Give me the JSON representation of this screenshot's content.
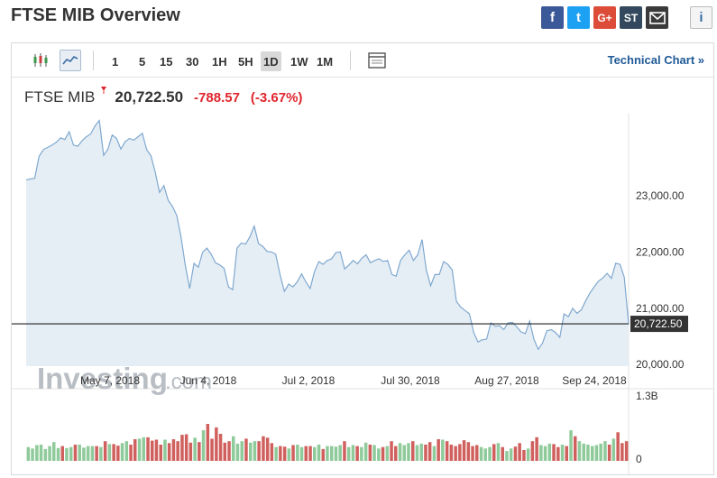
{
  "page": {
    "title": "FTSE MIB Overview"
  },
  "share": {
    "facebook": "f",
    "twitter": "t",
    "google": "G+",
    "stocktwits": "ST",
    "info": "i"
  },
  "toolbar": {
    "intervals": [
      "1",
      "5",
      "15",
      "30",
      "1H",
      "5H",
      "1D",
      "1W",
      "1M"
    ],
    "selected_interval": "1D",
    "technical_chart_label": "Technical Chart »"
  },
  "quote": {
    "name": "FTSE MIB",
    "last": "20,722.50",
    "change": "-788.57",
    "change_pct": "(-3.67%)"
  },
  "colors": {
    "accent": "#1f5a96",
    "negative": "#e0262c",
    "line": "#7fa8cf",
    "area": "#e6eef5",
    "vol_up": "#8fca9a",
    "vol_down": "#d0605e"
  },
  "watermark": {
    "brand": "Investing",
    "suffix": ".com"
  },
  "chart_data": {
    "type": "area",
    "x_ticks": [
      "May 7, 2018",
      "Jun 4, 2018",
      "Jul 2, 2018",
      "Jul 30, 2018",
      "Aug 27, 2018",
      "Sep 24, 2018"
    ],
    "y_ticks": [
      "23,000.00",
      "22,000.00",
      "21,000.00",
      "20,000.00"
    ],
    "ylim": [
      19970,
      24300
    ],
    "current_value": 20722.5,
    "current_label": "20,722.50",
    "values": [
      23280,
      23300,
      23310,
      23700,
      23820,
      23860,
      23900,
      23950,
      24030,
      24000,
      24140,
      23900,
      23880,
      23980,
      24050,
      24100,
      24240,
      24340,
      23720,
      23830,
      24080,
      24020,
      23830,
      23960,
      24020,
      23990,
      24050,
      24110,
      23820,
      23710,
      23420,
      23060,
      23180,
      22920,
      22810,
      22650,
      22260,
      21760,
      21350,
      21800,
      21730,
      21990,
      22070,
      21960,
      21810,
      21770,
      21710,
      21380,
      21330,
      22070,
      22160,
      22140,
      22270,
      22460,
      22150,
      22100,
      22010,
      22000,
      21960,
      21600,
      21300,
      21430,
      21380,
      21470,
      21610,
      21470,
      21350,
      21650,
      21830,
      21780,
      21850,
      21880,
      21990,
      22000,
      21700,
      21770,
      21850,
      21790,
      21890,
      21950,
      21810,
      21850,
      21880,
      21830,
      21850,
      21600,
      21570,
      21850,
      21950,
      22030,
      21850,
      21950,
      22220,
      21680,
      21400,
      21600,
      21600,
      21830,
      21780,
      21680,
      21120,
      21020,
      20960,
      20900,
      20570,
      20400,
      20440,
      20450,
      20740,
      20680,
      20690,
      20620,
      20740,
      20750,
      20670,
      20580,
      20550,
      20770,
      20450,
      20270,
      20380,
      20600,
      20620,
      20570,
      20480,
      20900,
      20850,
      21000,
      20910,
      20970,
      21130,
      21270,
      21380,
      21480,
      21540,
      21620,
      21530,
      21800,
      21780,
      21550,
      20720
    ],
    "volume_label_top": "1.3B",
    "volume_label_bottom": "0",
    "volume_max": 1.3,
    "volumes": [
      0.28,
      0.25,
      0.32,
      0.33,
      0.24,
      0.3,
      0.38,
      0.26,
      0.3,
      0.26,
      0.28,
      0.33,
      0.33,
      0.27,
      0.3,
      0.3,
      0.3,
      0.28,
      0.4,
      0.34,
      0.34,
      0.31,
      0.36,
      0.4,
      0.33,
      0.44,
      0.45,
      0.48,
      0.48,
      0.41,
      0.43,
      0.33,
      0.43,
      0.36,
      0.44,
      0.4,
      0.53,
      0.54,
      0.37,
      0.47,
      0.38,
      0.62,
      0.75,
      0.45,
      0.68,
      0.55,
      0.37,
      0.4,
      0.5,
      0.35,
      0.4,
      0.45,
      0.37,
      0.4,
      0.4,
      0.5,
      0.47,
      0.36,
      0.28,
      0.3,
      0.29,
      0.25,
      0.32,
      0.33,
      0.28,
      0.3,
      0.3,
      0.28,
      0.33,
      0.24,
      0.3,
      0.3,
      0.29,
      0.32,
      0.4,
      0.28,
      0.32,
      0.3,
      0.28,
      0.37,
      0.33,
      0.32,
      0.25,
      0.28,
      0.3,
      0.4,
      0.3,
      0.36,
      0.32,
      0.36,
      0.4,
      0.32,
      0.35,
      0.33,
      0.38,
      0.3,
      0.44,
      0.43,
      0.4,
      0.33,
      0.3,
      0.34,
      0.42,
      0.38,
      0.3,
      0.32,
      0.28,
      0.25,
      0.28,
      0.34,
      0.36,
      0.28,
      0.2,
      0.25,
      0.29,
      0.36,
      0.22,
      0.25,
      0.4,
      0.48,
      0.32,
      0.3,
      0.35,
      0.34,
      0.28,
      0.33,
      0.3,
      0.62,
      0.5,
      0.4,
      0.35,
      0.33,
      0.3,
      0.32,
      0.35,
      0.4,
      0.33,
      0.45,
      0.58,
      0.36,
      0.4
    ],
    "volume_dir": [
      1,
      1,
      1,
      1,
      1,
      1,
      1,
      1,
      0,
      1,
      1,
      0,
      1,
      1,
      1,
      1,
      0,
      1,
      0,
      1,
      0,
      0,
      1,
      1,
      0,
      0,
      1,
      1,
      0,
      0,
      0,
      0,
      1,
      0,
      0,
      0,
      0,
      0,
      0,
      1,
      0,
      1,
      0,
      0,
      0,
      0,
      0,
      0,
      1,
      1,
      1,
      0,
      1,
      1,
      0,
      0,
      0,
      0,
      1,
      0,
      0,
      1,
      0,
      1,
      1,
      0,
      0,
      1,
      1,
      0,
      1,
      1,
      1,
      1,
      0,
      1,
      1,
      0,
      1,
      1,
      0,
      1,
      1,
      0,
      1,
      0,
      0,
      1,
      1,
      1,
      0,
      1,
      1,
      0,
      0,
      1,
      0,
      1,
      0,
      0,
      0,
      0,
      0,
      0,
      0,
      0,
      1,
      1,
      1,
      0,
      1,
      0,
      1,
      1,
      0,
      0,
      0,
      1,
      0,
      0,
      1,
      1,
      1,
      0,
      0,
      1,
      0,
      1,
      0,
      1,
      1,
      1,
      1,
      1,
      1,
      1,
      0,
      1,
      0,
      0,
      0
    ]
  }
}
